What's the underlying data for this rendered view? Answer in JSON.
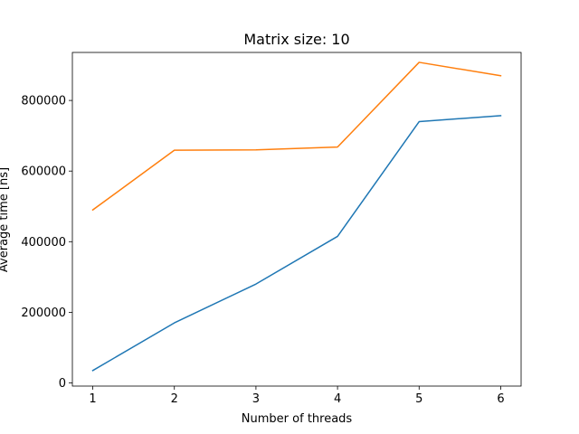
{
  "chart_data": {
    "type": "line",
    "title": "Matrix size: 10",
    "xlabel": "Number of threads",
    "ylabel": "Average time [ns]",
    "x": [
      1,
      2,
      3,
      4,
      5,
      6
    ],
    "x_ticks": [
      "1",
      "2",
      "3",
      "4",
      "5",
      "6"
    ],
    "xlim": [
      0.75,
      6.25
    ],
    "ylim": [
      -9000,
      936000
    ],
    "y_ticks": [
      0,
      200000,
      400000,
      600000,
      800000
    ],
    "y_tick_labels": [
      "0",
      "200000",
      "400000",
      "600000",
      "800000"
    ],
    "grid": false,
    "series": [
      {
        "color": "#1f77b4",
        "values": [
          35000,
          170000,
          280000,
          415000,
          740000,
          757000
        ]
      },
      {
        "color": "#ff7f0e",
        "values": [
          490000,
          659000,
          660000,
          668000,
          908000,
          870000
        ]
      }
    ]
  }
}
